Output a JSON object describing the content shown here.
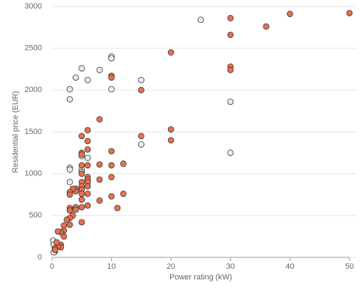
{
  "chart_data": {
    "type": "scatter",
    "xlabel": "Power rating (kW)",
    "ylabel": "Residential price (EUR)",
    "xlim": [
      0,
      50
    ],
    "xticks": [
      0,
      10,
      20,
      30,
      40,
      50
    ],
    "ylim": [
      0,
      3000
    ],
    "yticks": [
      0,
      500,
      1000,
      1500,
      2000,
      2500,
      3000
    ],
    "grid": true,
    "series": [
      {
        "color": "#ebebeb",
        "x": [
          30,
          30,
          25,
          15,
          15,
          10,
          10,
          10,
          8,
          6,
          6,
          5,
          5,
          5,
          5,
          4,
          3,
          3,
          3,
          3,
          3,
          0.2,
          0.3,
          0.5,
          0.5,
          0.3
        ],
        "values": [
          1860,
          1250,
          2840,
          2120,
          1350,
          2400,
          2380,
          2010,
          2240,
          2120,
          1190,
          2260,
          1210,
          1050,
          1020,
          2150,
          2010,
          1890,
          1070,
          1050,
          900,
          200,
          150,
          100,
          70,
          60
        ]
      },
      {
        "color": "#e8704e",
        "x": [
          50,
          40,
          36,
          30,
          30,
          30,
          30,
          20,
          20,
          20,
          15,
          15,
          12,
          12,
          11,
          10,
          10,
          10,
          10,
          10,
          10,
          8,
          8,
          8,
          8,
          6,
          6,
          6,
          6,
          6,
          6,
          6,
          6,
          6,
          6,
          5,
          5,
          5,
          5,
          5,
          5,
          5,
          5,
          5,
          5,
          5,
          5,
          4,
          4,
          4,
          4,
          3.5,
          3.5,
          3,
          3,
          3,
          3,
          3,
          3,
          2.5,
          2,
          2,
          2,
          1.5,
          1.5,
          1.5,
          1,
          1,
          0.8,
          0.5,
          0.5
        ],
        "values": [
          2920,
          2910,
          2760,
          2860,
          2660,
          2280,
          2240,
          2450,
          1530,
          1400,
          2000,
          1450,
          1120,
          760,
          590,
          2170,
          2150,
          1270,
          1100,
          960,
          730,
          1650,
          1110,
          930,
          680,
          1520,
          1390,
          1290,
          1100,
          960,
          930,
          900,
          850,
          760,
          620,
          1450,
          1250,
          1230,
          1100,
          1000,
          900,
          850,
          810,
          760,
          690,
          600,
          420,
          820,
          790,
          600,
          570,
          820,
          500,
          780,
          750,
          590,
          560,
          470,
          390,
          450,
          380,
          320,
          250,
          300,
          150,
          120,
          310,
          130,
          180,
          110,
          90
        ]
      }
    ]
  }
}
